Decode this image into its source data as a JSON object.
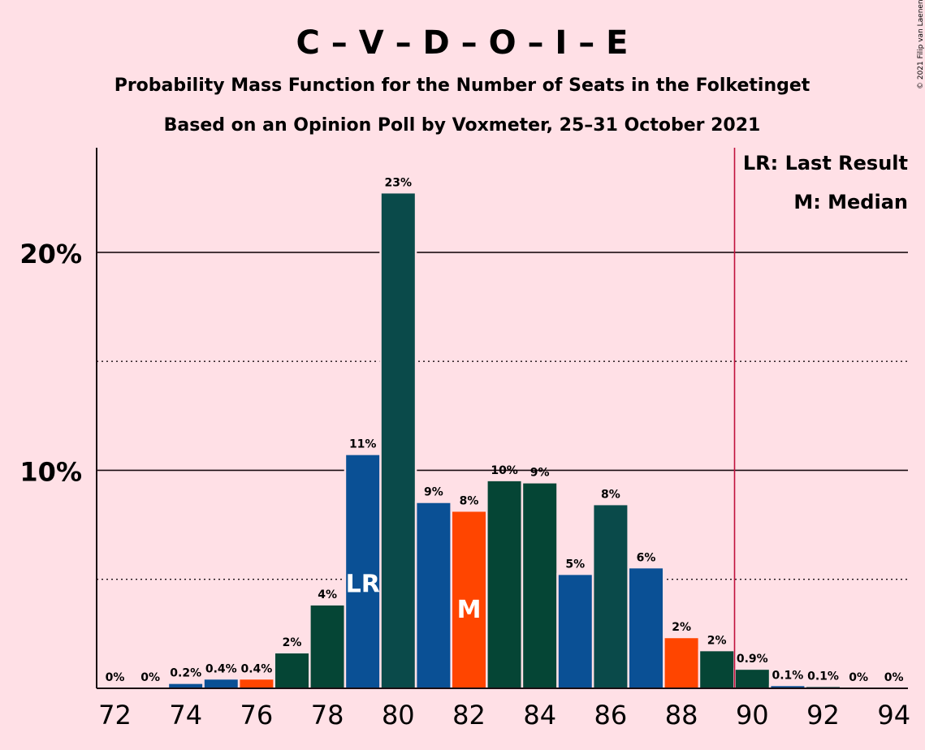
{
  "chart_data": {
    "type": "bar",
    "title": "C – V – D – O – I – E",
    "subtitle_1": "Probability Mass Function for the Number of Seats in the Folketinget",
    "subtitle_2": "Based on an Opinion Poll by Voxmeter, 25–31 October 2021",
    "copyright": "© 2021 Filip van Laenen",
    "x": [
      72,
      73,
      74,
      75,
      76,
      77,
      78,
      79,
      80,
      81,
      82,
      83,
      84,
      85,
      86,
      87,
      88,
      89,
      90,
      91,
      92,
      93,
      94
    ],
    "values": [
      0,
      0,
      0.2,
      0.4,
      0.4,
      1.6,
      3.8,
      10.7,
      22.7,
      8.5,
      8.1,
      9.5,
      9.4,
      5.2,
      8.4,
      5.5,
      2.3,
      1.7,
      0.85,
      0.1,
      0.06,
      0,
      0
    ],
    "labels": [
      "0%",
      "0%",
      "0.2%",
      "0.4%",
      "0.4%",
      "2%",
      "4%",
      "11%",
      "23%",
      "9%",
      "8%",
      "10%",
      "9%",
      "5%",
      "8%",
      "6%",
      "2%",
      "2%",
      "0.9%",
      "0.1%",
      "0.1%",
      "0%",
      "0%"
    ],
    "colors": [
      "#0a5095",
      "#0a4a4a",
      "#0a5095",
      "#0a5095",
      "#ff4500",
      "#054535",
      "#054535",
      "#0a5095",
      "#0a4a4a",
      "#0a5095",
      "#ff4500",
      "#054535",
      "#054535",
      "#0a5095",
      "#0a4a4a",
      "#0a5095",
      "#ff4500",
      "#054535",
      "#054535",
      "#0a5095",
      "#0a4a4a",
      "#0a5095",
      "#0a4a4a"
    ],
    "x_ticks": [
      72,
      74,
      76,
      78,
      80,
      82,
      84,
      86,
      88,
      90,
      92,
      94
    ],
    "x_tick_labels": [
      "72",
      "74",
      "76",
      "78",
      "80",
      "82",
      "84",
      "86",
      "88",
      "90",
      "92",
      "94"
    ],
    "y_ticks": [
      10,
      20
    ],
    "y_tick_labels": [
      "10%",
      "20%"
    ],
    "ylim": [
      0,
      24.8
    ],
    "dotted_gridlines": [
      5,
      15
    ],
    "solid_gridlines": [
      10,
      20
    ],
    "last_result_seat": 79,
    "median_seat": 82,
    "majority_line_seat": 89.5,
    "markers": {
      "last_result": "LR",
      "median": "M"
    },
    "legend": [
      "LR: Last Result",
      "M: Median"
    ],
    "legend_position": "top-right"
  }
}
